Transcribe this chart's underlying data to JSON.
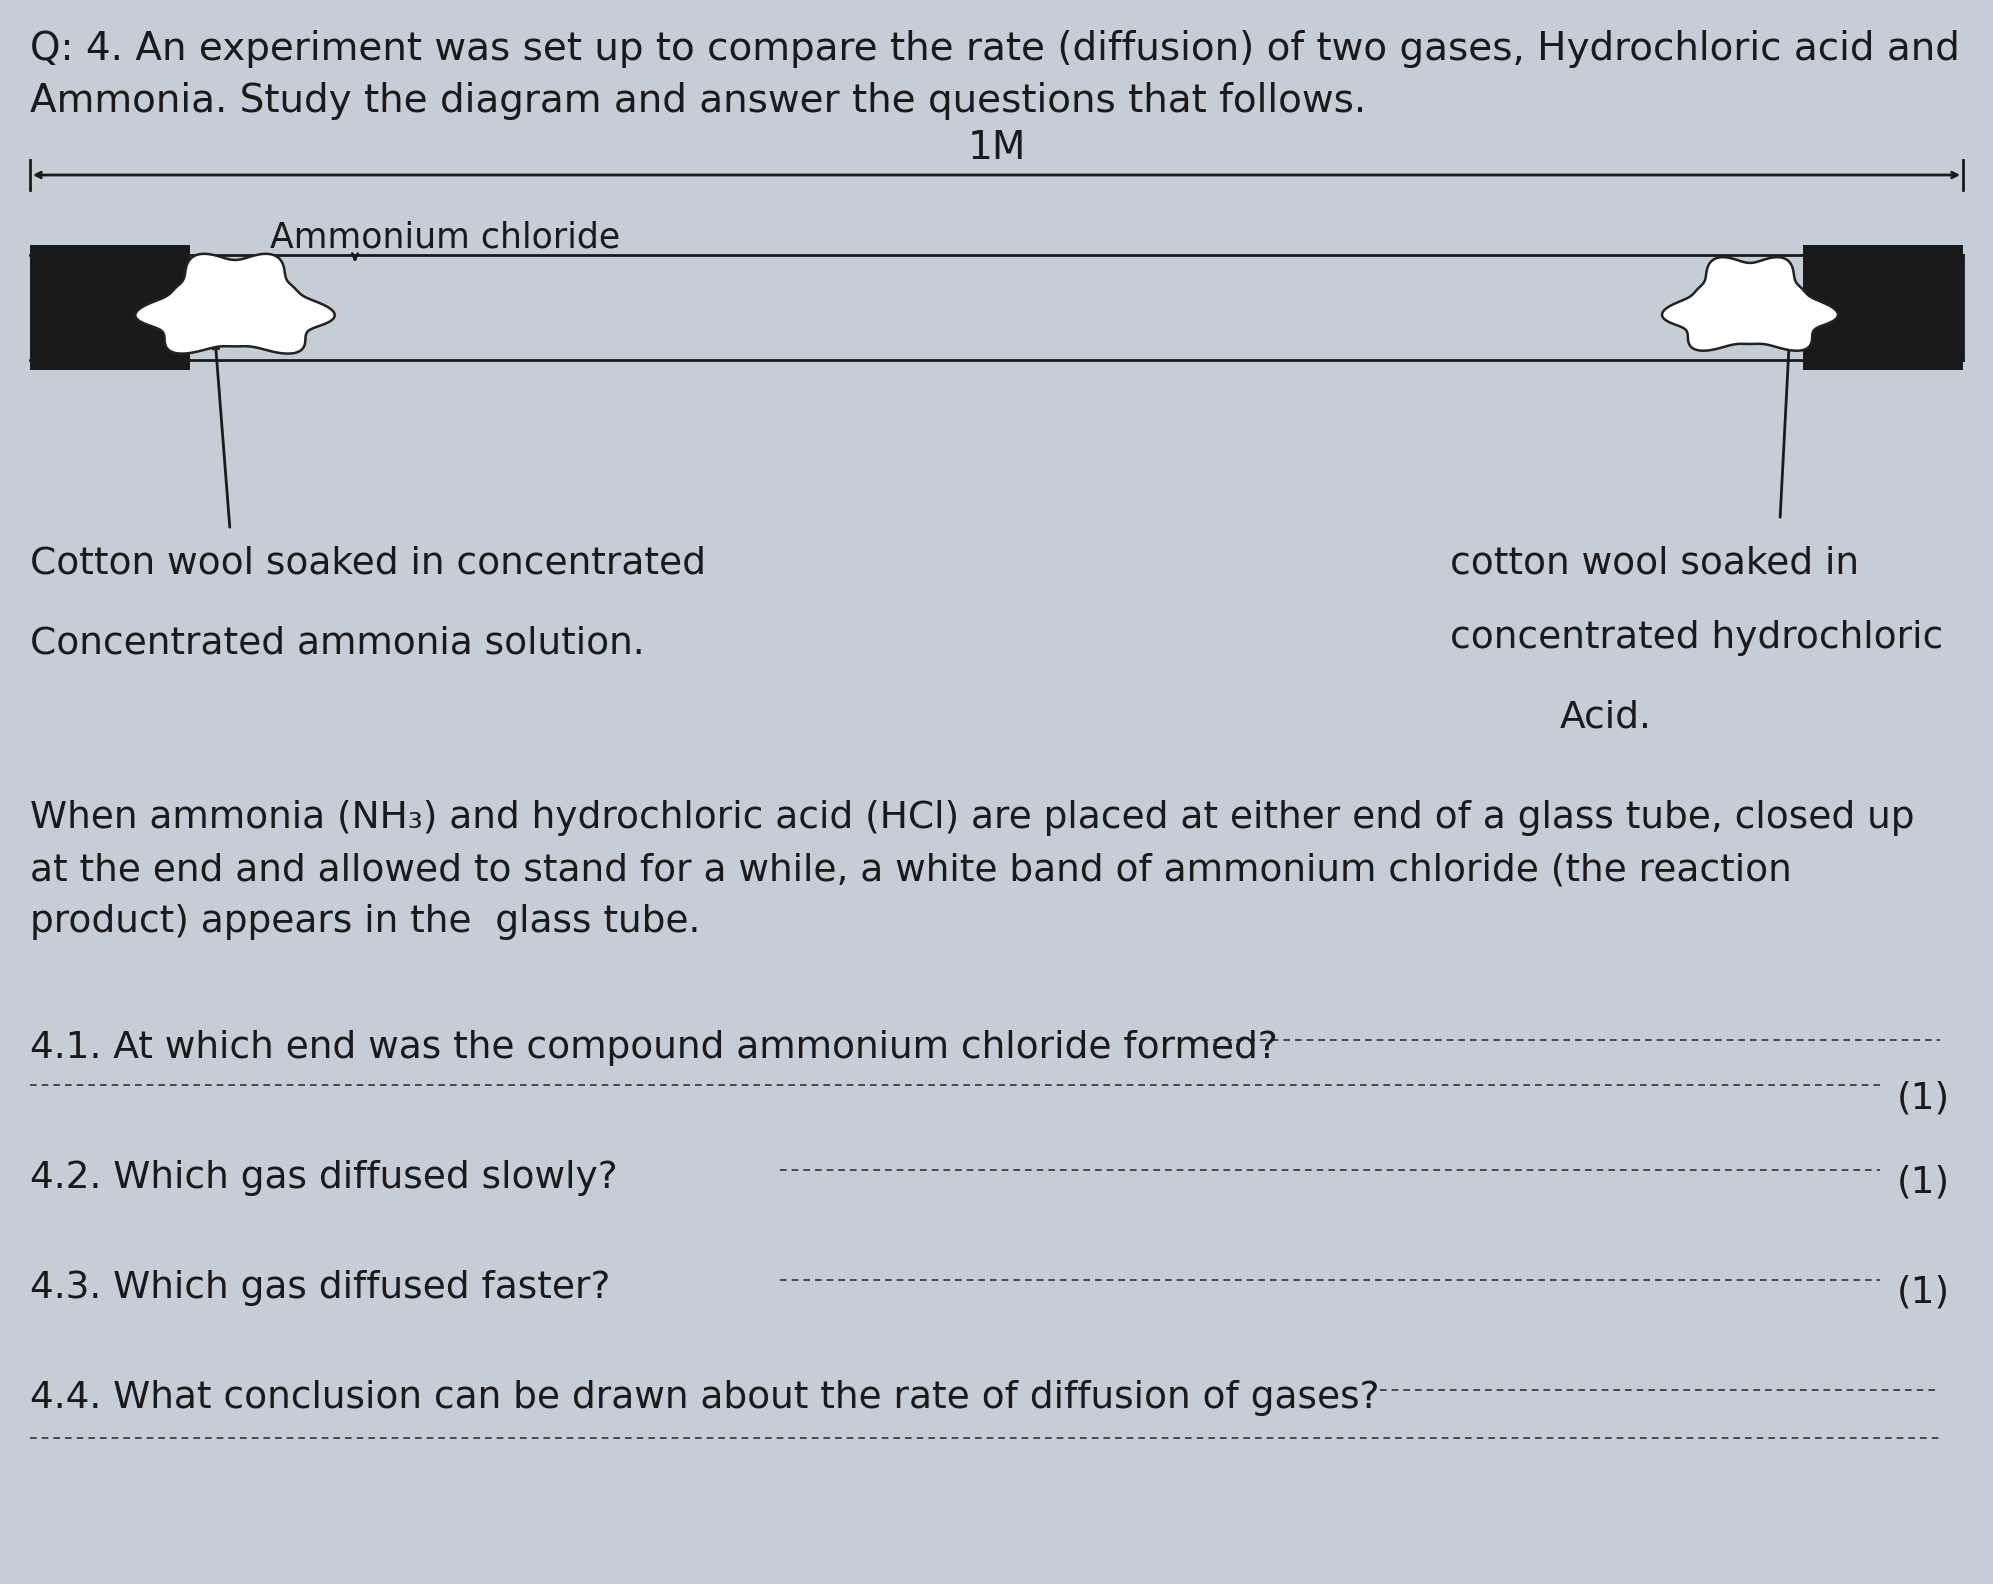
{
  "bg_color": "#c5cdd6",
  "title_line1": "Q: 4. An experiment was set up to compare the rate (diffusion) of two gases, Hydrochloric acid and",
  "title_line2": "Ammonia. Study the diagram and answer the questions that follows.",
  "measure_label": "1M",
  "ammonium_chloride_label": "Ammonium chloride",
  "left_label_line1": "Cotton wool soaked in concentrated",
  "left_label_line2": "Concentrated ammonia solution.",
  "right_label_line1": "cotton wool soaked in",
  "right_label_line2": "concentrated hydrochloric",
  "right_label_line3": "Acid.",
  "paragraph": "When ammonia (NH₃) and hydrochloric acid (HCl) are placed at either end of a glass tube, closed up\nat the end and allowed to stand for a while, a white band of ammonium chloride (the reaction\nproduct) appears in the  glass tube.",
  "q41": "4.1. At which end was the compound ammonium chloride formed? ",
  "q41_mark": "(1)",
  "q42": "4.2. Which gas diffused slowly? ",
  "q42_mark": "(1)",
  "q43": "4.3. Which gas diffused faster? ",
  "q43_mark": "(1)",
  "q44": "4.4. What conclusion can be drawn about the rate of diffusion of gases?",
  "block_color": "#1a1a1a",
  "text_color": "#1a1a1a"
}
